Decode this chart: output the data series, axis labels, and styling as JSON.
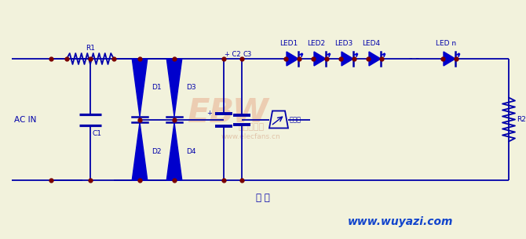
{
  "bg_color": "#f2f2dc",
  "line_color": "#0000aa",
  "dot_color": "#7a0000",
  "text_color": "#0000aa",
  "wm_color1": "#e8b090",
  "wm_color2": "#d09878",
  "bottom_label": "圖 一",
  "website": "www.wuyazi.com",
  "ac_label": "AC IN",
  "r1_label": "R1",
  "c1_label": "C1",
  "d1_label": "D1",
  "d2_label": "D2",
  "d3_label": "D3",
  "d4_label": "D4",
  "c2_label": "+ C2",
  "c3_label": "C3",
  "r2_label": "R2",
  "led_labels": [
    "LED1",
    "LED2",
    "LED3",
    "LED4",
    "LED n"
  ],
  "fig_width": 6.7,
  "fig_height": 3.05,
  "dpi": 100
}
